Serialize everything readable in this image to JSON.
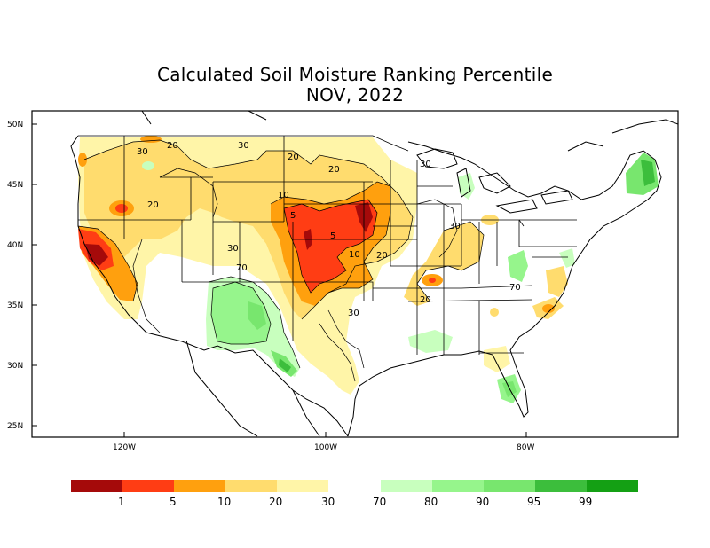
{
  "title": {
    "line1": "Calculated Soil Moisture Ranking Percentile",
    "line2": "NOV, 2022"
  },
  "axes": {
    "lat_ticks": [
      "50N",
      "45N",
      "40N",
      "35N",
      "30N",
      "25N"
    ],
    "lon_ticks": [
      "120W",
      "100W",
      "80W"
    ]
  },
  "contour_labels": [
    "30",
    "20",
    "30",
    "20",
    "20",
    "30",
    "20",
    "10",
    "5",
    "5",
    "10",
    "20",
    "30",
    "70",
    "30",
    "30",
    "20",
    "70"
  ],
  "legend": {
    "dry_colors": [
      "#a50a0a",
      "#ff3d14",
      "#ffa00e",
      "#ffdc6e",
      "#fff5a8"
    ],
    "wet_colors": [
      "#c8ffbe",
      "#96f58c",
      "#78e66e",
      "#3cbe3c",
      "#14a014"
    ],
    "labels": [
      "1",
      "5",
      "10",
      "20",
      "30",
      "70",
      "80",
      "90",
      "95",
      "99"
    ]
  }
}
